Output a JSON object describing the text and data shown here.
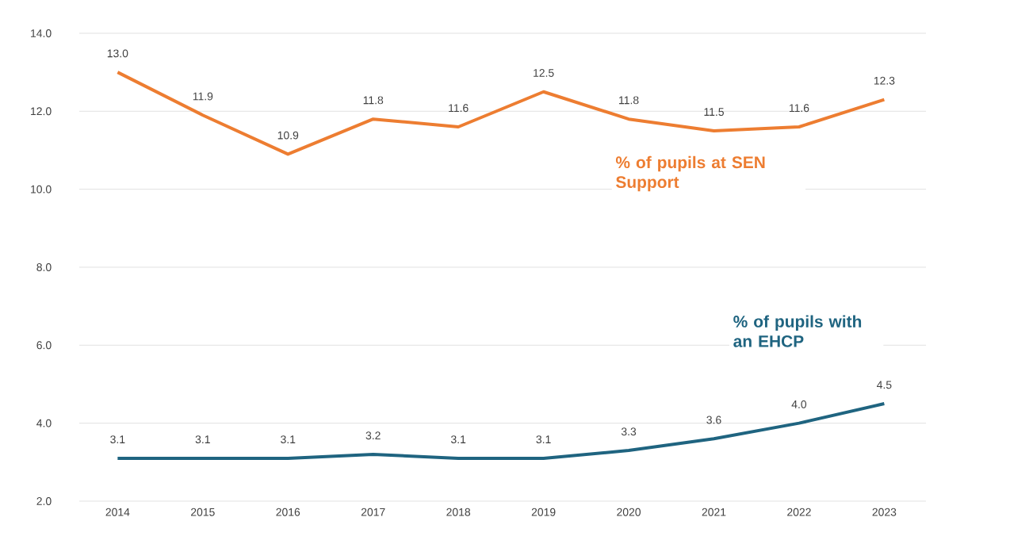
{
  "chart_data": {
    "type": "line",
    "categories": [
      "2014",
      "2015",
      "2016",
      "2017",
      "2018",
      "2019",
      "2020",
      "2021",
      "2022",
      "2023"
    ],
    "series": [
      {
        "name": "% of pupils at SEN Support",
        "color": "#ed7d31",
        "values": [
          13.0,
          11.9,
          10.9,
          11.8,
          11.6,
          12.5,
          11.8,
          11.5,
          11.6,
          12.3
        ],
        "value_labels": [
          "13.0",
          "11.9",
          "10.9",
          "11.8",
          "11.6",
          "12.5",
          "11.8",
          "11.5",
          "11.6",
          "12.3"
        ]
      },
      {
        "name": "% of pupils with an EHCP",
        "color": "#1f6480",
        "values": [
          3.1,
          3.1,
          3.1,
          3.2,
          3.1,
          3.1,
          3.3,
          3.6,
          4.0,
          4.5
        ],
        "value_labels": [
          "3.1",
          "3.1",
          "3.1",
          "3.2",
          "3.1",
          "3.1",
          "3.3",
          "3.6",
          "4.0",
          "4.5"
        ]
      }
    ],
    "ylim": [
      2.0,
      14.0
    ],
    "yticks": [
      {
        "value": 2,
        "label": "2.0"
      },
      {
        "value": 4,
        "label": "4.0"
      },
      {
        "value": 6,
        "label": "6.0"
      },
      {
        "value": 8,
        "label": "8.0"
      },
      {
        "value": 10,
        "label": "10.0"
      },
      {
        "value": 12,
        "label": "12.0"
      },
      {
        "value": 14,
        "label": "14.0"
      }
    ],
    "grid": "y",
    "marker": "none",
    "line_style": "solid"
  }
}
